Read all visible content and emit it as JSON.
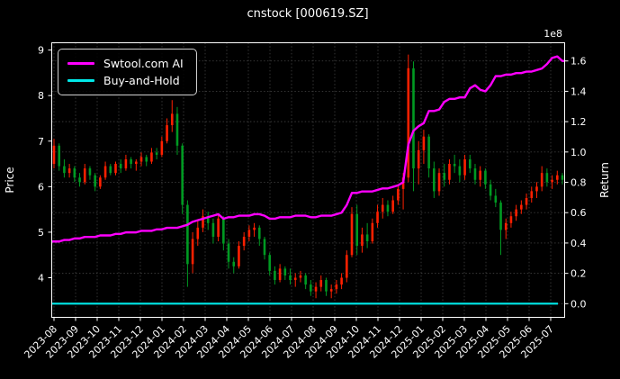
{
  "title": "cnstock [000619.SZ]",
  "legend": {
    "items": [
      {
        "label": "Swtool.com AI",
        "color": "#ff00ff"
      },
      {
        "label": "Buy-and-Hold",
        "color": "#00e8e8"
      }
    ]
  },
  "chart_data": {
    "type": "candlestick",
    "title": "cnstock [000619.SZ]",
    "background": "#000000",
    "text_color": "#ffffff",
    "grid": {
      "on": true,
      "style": "dashed",
      "color": "#3b3b3b"
    },
    "legend_position": "upper left",
    "x_tick_labels": [
      "2023-08",
      "2023-09",
      "2023-10",
      "2023-11",
      "2023-12",
      "2024-01",
      "2024-02",
      "2024-03",
      "2024-04",
      "2024-05",
      "2024-06",
      "2024-07",
      "2024-08",
      "2024-09",
      "2024-10",
      "2024-11",
      "2024-12",
      "2025-01",
      "2025-02",
      "2025-03",
      "2025-04",
      "2025-05",
      "2025-06",
      "2025-07"
    ],
    "left_axis": {
      "label": "Price",
      "ticks": [
        4,
        5,
        6,
        7,
        8,
        9
      ],
      "range": [
        3.13,
        9.16
      ]
    },
    "right_axis": {
      "label": "Return",
      "ticks": [
        0.0,
        0.2,
        0.4,
        0.6,
        0.8,
        1.0,
        1.2,
        1.4,
        1.6
      ],
      "multiplier": "1e8",
      "range": [
        -0.09,
        1.72
      ]
    },
    "candles": {
      "up_color": "#ff2000",
      "down_color": "#009a22",
      "interval": "weekly (estimated from daily chart)",
      "ohlc": [
        [
          6.5,
          7.05,
          6.4,
          6.9
        ],
        [
          6.9,
          6.95,
          6.35,
          6.45
        ],
        [
          6.45,
          6.6,
          6.2,
          6.3
        ],
        [
          6.3,
          6.5,
          6.2,
          6.4
        ],
        [
          6.4,
          6.45,
          6.1,
          6.2
        ],
        [
          6.2,
          6.3,
          6.0,
          6.1
        ],
        [
          6.1,
          6.5,
          6.05,
          6.4
        ],
        [
          6.4,
          6.45,
          6.15,
          6.25
        ],
        [
          6.25,
          6.3,
          5.9,
          6.0
        ],
        [
          6.0,
          6.25,
          5.95,
          6.2
        ],
        [
          6.2,
          6.55,
          6.15,
          6.45
        ],
        [
          6.45,
          6.5,
          6.25,
          6.3
        ],
        [
          6.3,
          6.55,
          6.25,
          6.5
        ],
        [
          6.5,
          6.6,
          6.3,
          6.4
        ],
        [
          6.4,
          6.7,
          6.35,
          6.6
        ],
        [
          6.6,
          6.65,
          6.4,
          6.5
        ],
        [
          6.5,
          6.6,
          6.35,
          6.55
        ],
        [
          6.55,
          6.75,
          6.45,
          6.65
        ],
        [
          6.65,
          6.7,
          6.45,
          6.55
        ],
        [
          6.55,
          6.85,
          6.5,
          6.75
        ],
        [
          6.75,
          6.85,
          6.6,
          6.7
        ],
        [
          6.7,
          7.1,
          6.65,
          7.0
        ],
        [
          7.0,
          7.5,
          6.95,
          7.35
        ],
        [
          7.35,
          7.9,
          7.2,
          7.6
        ],
        [
          7.6,
          7.75,
          6.7,
          6.9
        ],
        [
          6.9,
          6.95,
          5.4,
          5.6
        ],
        [
          5.6,
          5.7,
          3.8,
          4.3
        ],
        [
          4.3,
          5.0,
          4.1,
          4.85
        ],
        [
          4.85,
          5.25,
          4.7,
          5.1
        ],
        [
          5.1,
          5.5,
          5.0,
          5.35
        ],
        [
          5.35,
          5.45,
          5.05,
          5.2
        ],
        [
          5.2,
          5.3,
          4.75,
          4.9
        ],
        [
          4.9,
          5.4,
          4.8,
          5.3
        ],
        [
          5.3,
          5.35,
          4.6,
          4.75
        ],
        [
          4.75,
          4.85,
          4.2,
          4.35
        ],
        [
          4.35,
          4.45,
          4.1,
          4.25
        ],
        [
          4.25,
          4.8,
          4.2,
          4.7
        ],
        [
          4.7,
          5.0,
          4.6,
          4.9
        ],
        [
          4.9,
          5.15,
          4.8,
          5.05
        ],
        [
          5.05,
          5.2,
          4.9,
          5.1
        ],
        [
          5.1,
          5.15,
          4.7,
          4.85
        ],
        [
          4.85,
          4.9,
          4.4,
          4.5
        ],
        [
          4.5,
          4.55,
          4.05,
          4.15
        ],
        [
          4.15,
          4.25,
          3.85,
          3.95
        ],
        [
          3.95,
          4.3,
          3.9,
          4.2
        ],
        [
          4.2,
          4.25,
          3.95,
          4.05
        ],
        [
          4.05,
          4.2,
          3.85,
          3.95
        ],
        [
          3.95,
          4.1,
          3.8,
          4.0
        ],
        [
          4.0,
          4.15,
          3.9,
          4.05
        ],
        [
          4.05,
          4.1,
          3.75,
          3.85
        ],
        [
          3.85,
          3.95,
          3.6,
          3.7
        ],
        [
          3.7,
          3.9,
          3.55,
          3.8
        ],
        [
          3.8,
          4.05,
          3.7,
          3.95
        ],
        [
          3.95,
          4.0,
          3.6,
          3.7
        ],
        [
          3.7,
          3.85,
          3.55,
          3.75
        ],
        [
          3.75,
          3.95,
          3.65,
          3.85
        ],
        [
          3.85,
          4.1,
          3.75,
          4.0
        ],
        [
          4.0,
          4.6,
          3.9,
          4.5
        ],
        [
          4.5,
          5.55,
          4.45,
          5.4
        ],
        [
          5.4,
          5.6,
          4.5,
          4.7
        ],
        [
          4.7,
          5.1,
          4.55,
          4.95
        ],
        [
          4.95,
          5.2,
          4.65,
          4.8
        ],
        [
          4.8,
          5.3,
          4.75,
          5.2
        ],
        [
          5.2,
          5.6,
          5.1,
          5.45
        ],
        [
          5.45,
          5.75,
          5.3,
          5.6
        ],
        [
          5.6,
          5.7,
          5.35,
          5.45
        ],
        [
          5.45,
          5.8,
          5.4,
          5.7
        ],
        [
          5.7,
          6.05,
          5.6,
          5.95
        ],
        [
          5.95,
          6.3,
          5.5,
          6.2
        ],
        [
          6.2,
          8.9,
          6.1,
          8.6
        ],
        [
          8.6,
          8.75,
          5.9,
          6.4
        ],
        [
          6.4,
          7.0,
          6.05,
          6.8
        ],
        [
          6.8,
          7.25,
          6.5,
          7.1
        ],
        [
          7.1,
          7.15,
          6.2,
          6.4
        ],
        [
          6.4,
          6.55,
          5.75,
          5.9
        ],
        [
          5.9,
          6.4,
          5.8,
          6.3
        ],
        [
          6.3,
          6.5,
          6.0,
          6.15
        ],
        [
          6.15,
          6.6,
          6.05,
          6.5
        ],
        [
          6.5,
          6.7,
          6.3,
          6.45
        ],
        [
          6.45,
          6.6,
          6.1,
          6.25
        ],
        [
          6.25,
          6.7,
          6.15,
          6.6
        ],
        [
          6.6,
          6.7,
          6.3,
          6.4
        ],
        [
          6.4,
          6.5,
          6.05,
          6.15
        ],
        [
          6.15,
          6.45,
          6.0,
          6.35
        ],
        [
          6.35,
          6.4,
          5.95,
          6.05
        ],
        [
          6.05,
          6.15,
          5.7,
          5.8
        ],
        [
          5.8,
          5.95,
          5.55,
          5.65
        ],
        [
          5.65,
          5.7,
          4.5,
          5.05
        ],
        [
          5.05,
          5.3,
          4.85,
          5.2
        ],
        [
          5.2,
          5.45,
          5.1,
          5.35
        ],
        [
          5.35,
          5.6,
          5.25,
          5.5
        ],
        [
          5.5,
          5.7,
          5.4,
          5.6
        ],
        [
          5.6,
          5.85,
          5.5,
          5.75
        ],
        [
          5.75,
          6.0,
          5.65,
          5.9
        ],
        [
          5.9,
          6.1,
          5.75,
          6.0
        ],
        [
          6.0,
          6.45,
          5.9,
          6.3
        ],
        [
          6.3,
          6.4,
          6.0,
          6.1
        ],
        [
          6.1,
          6.25,
          5.95,
          6.15
        ],
        [
          6.15,
          6.35,
          6.05,
          6.25
        ],
        [
          6.25,
          6.3,
          6.05,
          6.15
        ]
      ]
    },
    "series": [
      {
        "name": "Swtool.com AI",
        "axis": "right",
        "color": "#ff00ff",
        "units": "1e8",
        "values": [
          0.41,
          0.41,
          0.42,
          0.42,
          0.43,
          0.43,
          0.44,
          0.44,
          0.44,
          0.45,
          0.45,
          0.45,
          0.46,
          0.46,
          0.47,
          0.47,
          0.47,
          0.48,
          0.48,
          0.48,
          0.49,
          0.49,
          0.5,
          0.5,
          0.5,
          0.51,
          0.52,
          0.54,
          0.55,
          0.56,
          0.57,
          0.58,
          0.59,
          0.56,
          0.57,
          0.57,
          0.58,
          0.58,
          0.58,
          0.59,
          0.59,
          0.58,
          0.56,
          0.56,
          0.57,
          0.57,
          0.57,
          0.58,
          0.58,
          0.58,
          0.57,
          0.57,
          0.58,
          0.58,
          0.58,
          0.59,
          0.6,
          0.65,
          0.73,
          0.73,
          0.74,
          0.74,
          0.74,
          0.75,
          0.76,
          0.76,
          0.77,
          0.78,
          0.8,
          1.05,
          1.14,
          1.17,
          1.19,
          1.27,
          1.27,
          1.28,
          1.33,
          1.35,
          1.35,
          1.36,
          1.36,
          1.42,
          1.44,
          1.41,
          1.4,
          1.44,
          1.5,
          1.5,
          1.51,
          1.51,
          1.52,
          1.52,
          1.53,
          1.53,
          1.54,
          1.55,
          1.58,
          1.62,
          1.63,
          1.6
        ]
      },
      {
        "name": "Buy-and-Hold",
        "axis": "right",
        "color": "#00e8e8",
        "units": "1e8",
        "constant": 0.0
      }
    ]
  }
}
